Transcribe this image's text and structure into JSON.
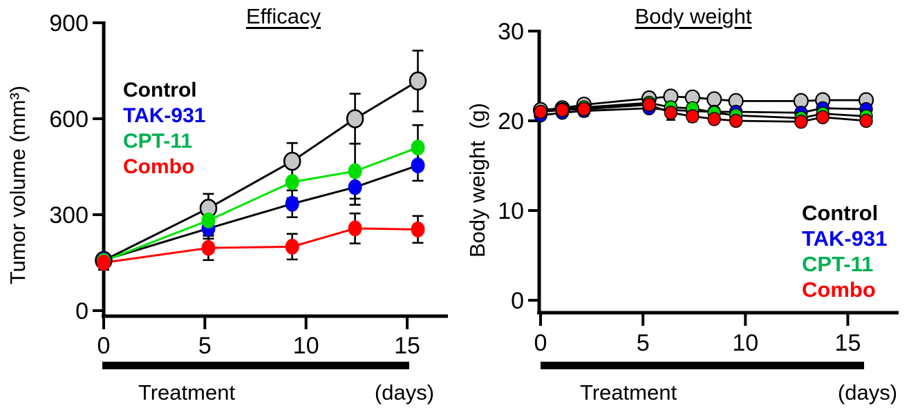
{
  "chart_data": [
    {
      "id": "efficacy",
      "type": "line",
      "title": "Efficacy",
      "ylabel": "Tumor volume (mm³)",
      "xlabel_bar": "Treatment",
      "xlabel_unit": "(days)",
      "x": [
        0,
        5,
        9,
        12,
        15
      ],
      "xticks": [
        0,
        5,
        10,
        15
      ],
      "yticks": [
        0,
        300,
        600,
        900
      ],
      "xlim": [
        0,
        17
      ],
      "ylim": [
        0,
        900
      ],
      "grid": false,
      "legend_position": "top-left",
      "series": [
        {
          "name": "Control",
          "values": [
            157,
            320,
            467,
            600,
            718
          ],
          "sem": [
            20,
            45,
            57,
            78,
            95
          ],
          "marker_fill": "#C6C6C6",
          "marker_stroke": "#000000",
          "marker_stroke_width": 2.6,
          "line_color": "#000000",
          "label_color": "#000000"
        },
        {
          "name": "TAK-931",
          "values": [
            158,
            257,
            334,
            386,
            454
          ],
          "sem": [
            18,
            32,
            42,
            55,
            48
          ],
          "marker_fill": "#0000EE",
          "marker_stroke": "none",
          "marker_stroke_width": 0,
          "line_color": "#000000",
          "label_color": "#0000EE"
        },
        {
          "name": "CPT-11",
          "values": [
            155,
            282,
            402,
            436,
            510
          ],
          "sem": [
            16,
            46,
            50,
            86,
            70
          ],
          "marker_fill": "#00DC00",
          "marker_stroke": "none",
          "marker_stroke_width": 0,
          "line_color": "#00E400",
          "label_color": "#00B050"
        },
        {
          "name": "Combo",
          "values": [
            150,
            196,
            200,
            257,
            254
          ],
          "sem": [
            22,
            38,
            40,
            47,
            42
          ],
          "marker_fill": "#FF0000",
          "marker_stroke": "none",
          "marker_stroke_width": 0,
          "line_color": "#FF0000",
          "label_color": "#FF0000"
        }
      ]
    },
    {
      "id": "body-weight",
      "type": "line",
      "title": "Body weight",
      "ylabel": "Body weight  (g)",
      "xlabel_bar": "Treatment",
      "xlabel_unit": "(days)",
      "x": [
        0,
        1,
        2,
        5,
        6,
        7,
        8,
        9,
        12,
        13,
        15
      ],
      "xticks": [
        0,
        5,
        10,
        15
      ],
      "yticks": [
        0,
        10,
        20,
        30
      ],
      "xlim": [
        0,
        17
      ],
      "ylim": [
        0,
        30
      ],
      "grid": false,
      "legend_position": "bottom-right",
      "series": [
        {
          "name": "Control",
          "values": [
            21.2,
            21.4,
            21.8,
            22.5,
            22.7,
            22.6,
            22.4,
            22.2,
            22.2,
            22.3,
            22.3
          ],
          "sem": [
            0.6,
            0.5,
            0.5,
            0.4,
            0.4,
            0.4,
            0.4,
            0.4,
            0.4,
            0.4,
            0.4
          ],
          "marker_fill": "#C6C6C6",
          "marker_stroke": "#000000",
          "marker_stroke_width": 2.2,
          "line_color": "#000000",
          "label_color": "#000000"
        },
        {
          "name": "TAK-931",
          "values": [
            20.6,
            20.9,
            21.1,
            21.4,
            21.2,
            21.1,
            21.0,
            21.0,
            20.9,
            21.4,
            21.3
          ],
          "sem": [
            0.5,
            0.5,
            0.5,
            0.4,
            0.4,
            0.4,
            0.4,
            0.4,
            0.4,
            0.4,
            0.4
          ],
          "marker_fill": "#0000EE",
          "marker_stroke": "#000000",
          "marker_stroke_width": 1.4,
          "line_color": "#000000",
          "label_color": "#0000EE"
        },
        {
          "name": "CPT-11",
          "values": [
            21.0,
            21.3,
            21.5,
            22.0,
            21.5,
            21.4,
            20.9,
            20.6,
            20.3,
            20.8,
            20.5
          ],
          "sem": [
            0.6,
            0.6,
            0.8,
            0.6,
            0.5,
            0.5,
            0.5,
            0.5,
            0.4,
            0.4,
            0.4
          ],
          "marker_fill": "#00DC00",
          "marker_stroke": "#000000",
          "marker_stroke_width": 1.4,
          "line_color": "#000000",
          "label_color": "#00B050"
        },
        {
          "name": "Combo",
          "values": [
            21.0,
            21.2,
            21.3,
            21.8,
            20.9,
            20.5,
            20.2,
            20.0,
            19.9,
            20.4,
            20.0
          ],
          "sem": [
            0.7,
            0.6,
            0.8,
            0.9,
            0.8,
            0.6,
            0.5,
            0.5,
            0.4,
            0.4,
            0.4
          ],
          "marker_fill": "#FF0000",
          "marker_stroke": "#000000",
          "marker_stroke_width": 1.4,
          "line_color": "#000000",
          "label_color": "#FF0000"
        }
      ]
    }
  ]
}
